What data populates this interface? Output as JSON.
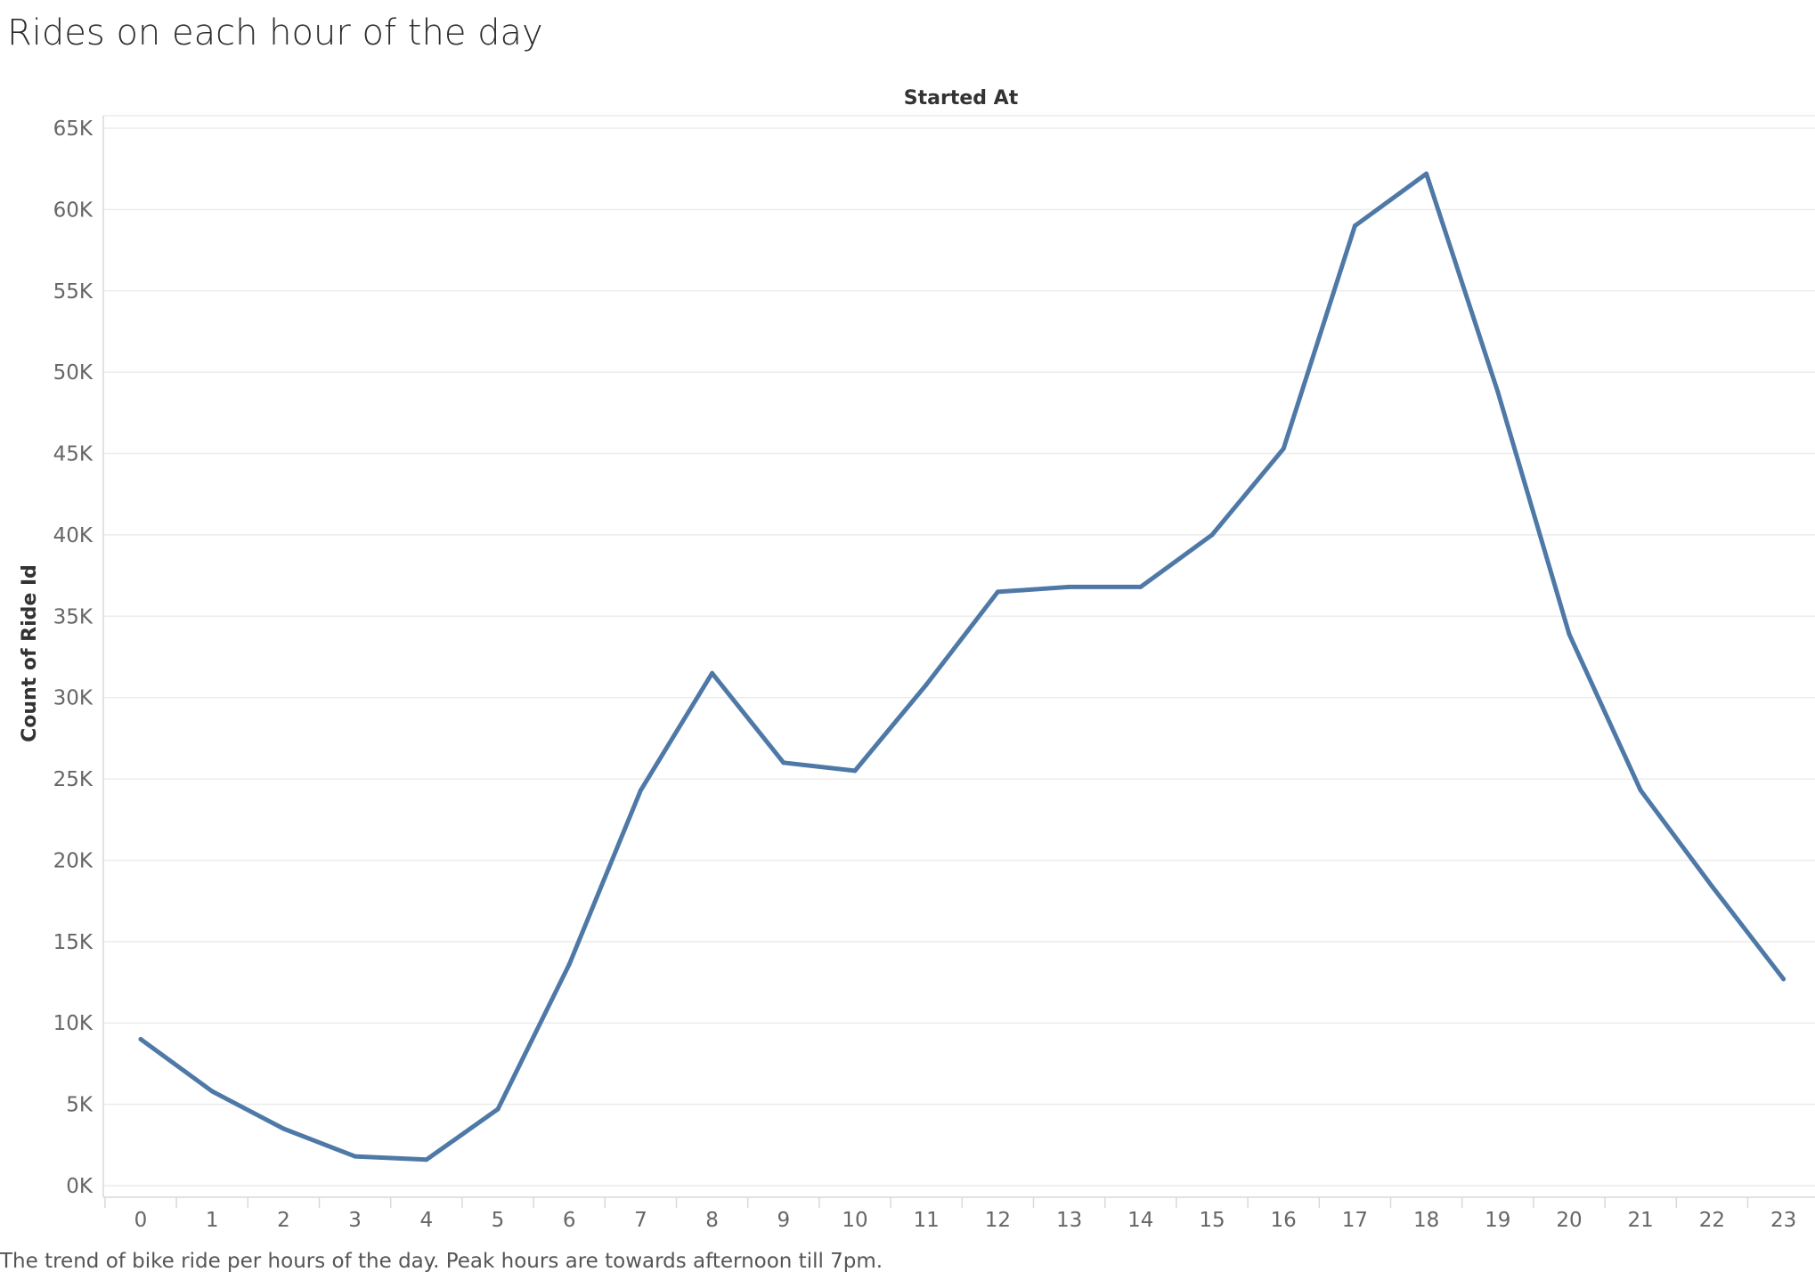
{
  "title": "Rides on each hour of the day",
  "caption": "The trend of bike ride per hours of the day. Peak hours are towards afternoon till 7pm.",
  "colors": {
    "line": "#4e79a7",
    "grid": "#ececec",
    "axis": "#d9d9d9"
  },
  "chart_data": {
    "type": "line",
    "title": "Rides on each hour of the day",
    "xlabel": "Started At",
    "ylabel": "Count of Ride Id",
    "x": [
      0,
      1,
      2,
      3,
      4,
      5,
      6,
      7,
      8,
      9,
      10,
      11,
      12,
      13,
      14,
      15,
      16,
      17,
      18,
      19,
      20,
      21,
      22,
      23
    ],
    "series": [
      {
        "values": [
          9000,
          5800,
          3500,
          1800,
          1600,
          4700,
          13600,
          24300,
          31500,
          26000,
          25500,
          30800,
          36500,
          36800,
          36800,
          40000,
          45300,
          59000,
          62200,
          48800,
          33900,
          24300,
          18400,
          12700
        ]
      }
    ],
    "y_ticks": [
      "0K",
      "5K",
      "10K",
      "15K",
      "20K",
      "25K",
      "30K",
      "35K",
      "40K",
      "45K",
      "50K",
      "55K",
      "60K",
      "65K"
    ],
    "ylim": [
      0,
      65000
    ],
    "grid": true,
    "legend": "none"
  }
}
